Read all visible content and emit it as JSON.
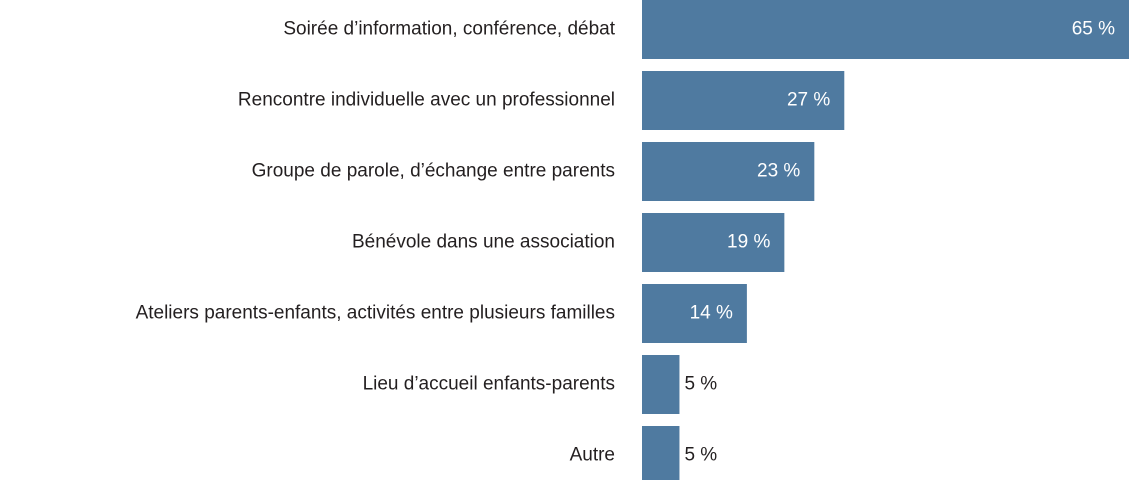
{
  "chart_data": {
    "type": "bar",
    "orientation": "horizontal",
    "categories": [
      "Soirée d’information, conférence, débat",
      "Rencontre individuelle avec un professionnel",
      "Groupe de parole, d’échange entre parents",
      "Bénévole dans une association",
      "Ateliers parents-enfants, activités entre plusieurs familles",
      "Lieu d’accueil enfants-parents",
      "Autre"
    ],
    "values": [
      65,
      27,
      23,
      19,
      14,
      5,
      5
    ],
    "value_labels": [
      "65 %",
      "27 %",
      "23 %",
      "19 %",
      "14 %",
      "5 %",
      "5 %"
    ],
    "color": "#4f7aa0"
  }
}
